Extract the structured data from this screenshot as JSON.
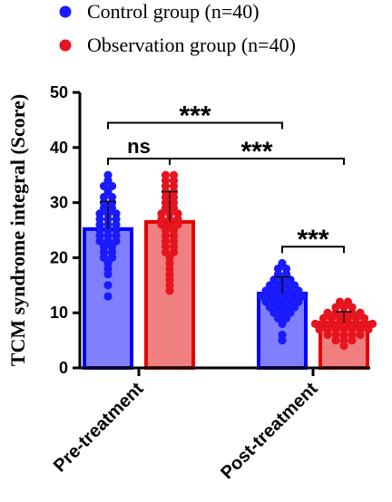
{
  "chart_data": {
    "type": "bar",
    "ylabel": "TCM syndrome integral (Score)",
    "ylim": [
      0,
      50
    ],
    "yticks": [
      0,
      10,
      20,
      30,
      40,
      50
    ],
    "categories": [
      "Pre-treatment",
      "Post-treatment"
    ],
    "series": [
      {
        "name": "Control group (n=40)",
        "marker_color": "#1a1aff",
        "bar_fill": "#8080ff",
        "bar_stroke": "#0000ff",
        "means": [
          25.2,
          13.5
        ],
        "sd": [
          5.0,
          3.0
        ],
        "points": [
          [
            35,
            34,
            33,
            33,
            32,
            31,
            31,
            30,
            30,
            29,
            29,
            28,
            28,
            28,
            27,
            27,
            27,
            26,
            26,
            26,
            25,
            25,
            25,
            24,
            24,
            24,
            23,
            23,
            23,
            22,
            22,
            21,
            21,
            20,
            20,
            19,
            18,
            17,
            15,
            13
          ],
          [
            19,
            18,
            18,
            17,
            17,
            16,
            16,
            16,
            15,
            15,
            15,
            15,
            14,
            14,
            14,
            14,
            14,
            13,
            13,
            13,
            13,
            13,
            13,
            12,
            12,
            12,
            12,
            12,
            11,
            11,
            11,
            11,
            10,
            10,
            10,
            9,
            9,
            8,
            6,
            5
          ]
        ]
      },
      {
        "name": "Observation group (n=40)",
        "marker_color": "#e6141e",
        "bar_fill": "#f08080",
        "bar_stroke": "#e60000",
        "means": [
          26.5,
          8.2
        ],
        "sd": [
          5.5,
          2.0
        ],
        "points": [
          [
            35,
            35,
            34,
            34,
            33,
            33,
            32,
            32,
            31,
            31,
            30,
            30,
            29,
            29,
            28,
            28,
            28,
            27,
            27,
            27,
            26,
            26,
            26,
            25,
            25,
            24,
            24,
            23,
            23,
            22,
            22,
            21,
            21,
            20,
            19,
            18,
            17,
            16,
            15,
            14
          ],
          [
            12,
            12,
            11,
            11,
            11,
            10,
            10,
            10,
            10,
            10,
            9,
            9,
            9,
            9,
            9,
            9,
            8,
            8,
            8,
            8,
            8,
            8,
            8,
            8,
            7,
            7,
            7,
            7,
            7,
            7,
            7,
            6,
            6,
            6,
            6,
            6,
            5,
            5,
            5,
            4
          ]
        ]
      }
    ],
    "significance": [
      {
        "label": "ns",
        "from": [
          0,
          0
        ],
        "to": [
          0,
          1
        ],
        "y": 38
      },
      {
        "label": "***",
        "from": [
          0,
          0
        ],
        "to": [
          1,
          0
        ],
        "y": 44.5
      },
      {
        "label": "***",
        "from": [
          0,
          1
        ],
        "to": [
          1,
          1
        ],
        "y": 38
      },
      {
        "label": "***",
        "from": [
          1,
          0
        ],
        "to": [
          1,
          1
        ],
        "y": 22
      }
    ],
    "legend_position": "top-left",
    "grid": false
  }
}
